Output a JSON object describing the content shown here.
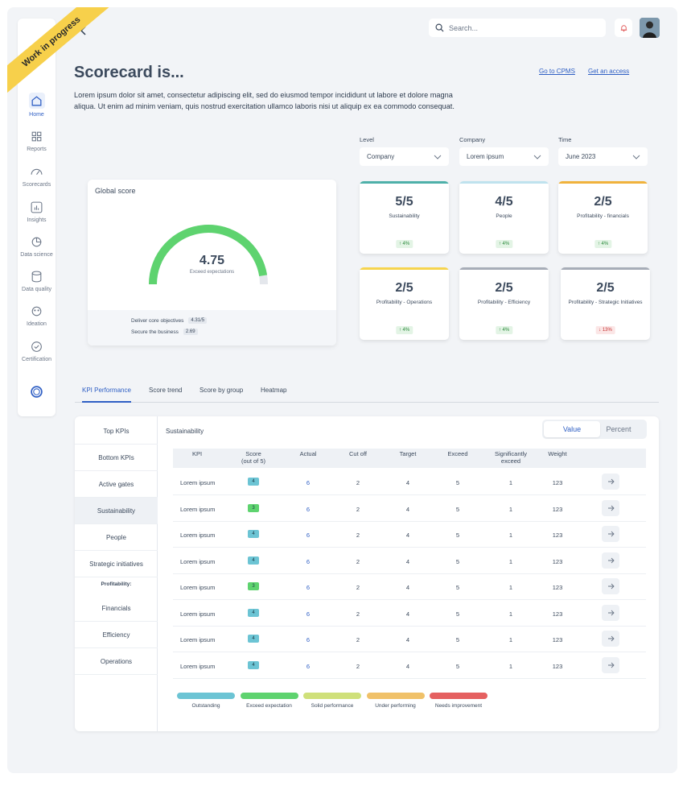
{
  "ribbon": "Work in progress",
  "sidebar": {
    "items": [
      {
        "label": "Home"
      },
      {
        "label": "Reports"
      },
      {
        "label": "Scorecards"
      },
      {
        "label": "Insights"
      },
      {
        "label": "Data science"
      },
      {
        "label": "Data quality"
      },
      {
        "label": "Ideation"
      },
      {
        "label": "Certification"
      }
    ]
  },
  "search": {
    "placeholder": "Search..."
  },
  "header": {
    "title": "Scorecard is...",
    "link_cpms": "Go to CPMS",
    "link_access": "Get an access",
    "description": "Lorem ipsum dolor sit amet, consectetur adipiscing elit, sed do eiusmod tempor incididunt ut labore et dolore magna aliqua. Ut enim ad minim veniam, quis nostrud exercitation ullamco laboris nisi ut aliquip ex ea commodo consequat."
  },
  "filters": {
    "level": {
      "label": "Level",
      "value": "Company"
    },
    "company": {
      "label": "Company",
      "value": "Lorem ipsum"
    },
    "time": {
      "label": "Time",
      "value": "June 2023"
    }
  },
  "global": {
    "title": "Global score",
    "value": "4.75",
    "value_fraction": 0.95,
    "subtitle": "Exceed expectations",
    "rows": [
      {
        "label": "Deliver core objectives",
        "value": "4.31/5"
      },
      {
        "label": "Secure the business",
        "value": "2.69"
      }
    ]
  },
  "cards": [
    {
      "value": "5/5",
      "label": "Sustainability",
      "trend": "↑ 4%",
      "color": "#4eb0a9"
    },
    {
      "value": "4/5",
      "label": "People",
      "trend": "↑ 4%",
      "color": "#bfe2ee"
    },
    {
      "value": "2/5",
      "label": "Profitability - financials",
      "trend": "↑ 4%",
      "color": "#f0b23c"
    },
    {
      "value": "2/5",
      "label": "Profitability - Operations",
      "trend": "↑ 4%",
      "color": "#f6d44e"
    },
    {
      "value": "2/5",
      "label": "Profitability - Efficiency",
      "trend": "↑ 4%",
      "color": "#a7adb8"
    },
    {
      "value": "2/5",
      "label": "Profitability - Strategic Initiatives",
      "trend": "↓ 13%",
      "color": "#a7adb8"
    }
  ],
  "tabs": [
    "KPI Performance",
    "Score trend",
    "Score by group",
    "Heatmap"
  ],
  "leftnav": [
    "Top KPIs",
    "Bottom KPIs",
    "Active gates",
    "Sustainability",
    "People",
    "Strategic initiatives",
    "Profitability:",
    "Financials",
    "Efficiency",
    "Operations"
  ],
  "panel": {
    "title": "Sustainability",
    "toggle": {
      "on": "Value",
      "off": "Percent"
    }
  },
  "table": {
    "headers": [
      "KPI",
      "Score\n(out of 5)",
      "Actual",
      "Cut off",
      "Target",
      "Exceed",
      "Significantly\nexceed",
      "Weight"
    ],
    "rows": [
      {
        "kpi": "Lorem ipsum",
        "score": "4",
        "actual": "6",
        "cutoff": "2",
        "target": "4",
        "exceed": "5",
        "sig": "1",
        "weight": "123"
      },
      {
        "kpi": "Lorem ipsum",
        "score": "3",
        "actual": "6",
        "cutoff": "2",
        "target": "4",
        "exceed": "5",
        "sig": "1",
        "weight": "123"
      },
      {
        "kpi": "Lorem ipsum",
        "score": "4",
        "actual": "6",
        "cutoff": "2",
        "target": "4",
        "exceed": "5",
        "sig": "1",
        "weight": "123"
      },
      {
        "kpi": "Lorem ipsum",
        "score": "4",
        "actual": "6",
        "cutoff": "2",
        "target": "4",
        "exceed": "5",
        "sig": "1",
        "weight": "123"
      },
      {
        "kpi": "Lorem ipsum",
        "score": "3",
        "actual": "6",
        "cutoff": "2",
        "target": "4",
        "exceed": "5",
        "sig": "1",
        "weight": "123"
      },
      {
        "kpi": "Lorem ipsum",
        "score": "4",
        "actual": "6",
        "cutoff": "2",
        "target": "4",
        "exceed": "5",
        "sig": "1",
        "weight": "123"
      },
      {
        "kpi": "Lorem ipsum",
        "score": "4",
        "actual": "6",
        "cutoff": "2",
        "target": "4",
        "exceed": "5",
        "sig": "1",
        "weight": "123"
      },
      {
        "kpi": "Lorem ipsum",
        "score": "4",
        "actual": "6",
        "cutoff": "2",
        "target": "4",
        "exceed": "5",
        "sig": "1",
        "weight": "123"
      }
    ]
  },
  "legend": [
    {
      "label": "Outstanding",
      "color": "#6cc4d4"
    },
    {
      "label": "Exceed expectation",
      "color": "#5ed36f"
    },
    {
      "label": "Solid performance",
      "color": "#cfe07a"
    },
    {
      "label": "Under performing",
      "color": "#f0c169"
    },
    {
      "label": "Needs improvement",
      "color": "#e56060"
    }
  ]
}
